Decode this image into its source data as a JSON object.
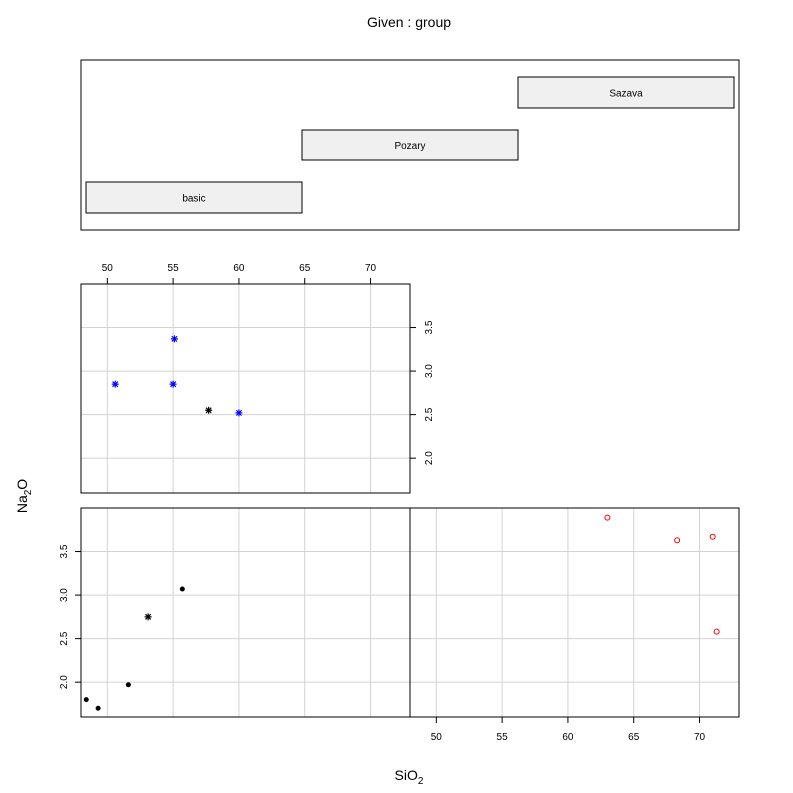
{
  "given_title": "Given : group",
  "ylabel": {
    "main": "Na",
    "sub": "2",
    "tail": "O"
  },
  "xlabel": {
    "main": "SiO",
    "sub": "2"
  },
  "colors": {
    "basic": "#000000",
    "Pozary": "#0000ff",
    "Sazava": "#ff0000",
    "grid": "#d3d3d3",
    "bar_fill": "#f0f0f0"
  },
  "chart_data": {
    "type": "scatter",
    "title": "",
    "xlabel": "SiO2",
    "ylabel": "Na2O",
    "given": "group",
    "xlim": [
      48,
      73
    ],
    "ylim": [
      1.6,
      4.0
    ],
    "xticks": [
      "50",
      "55",
      "60",
      "65",
      "70"
    ],
    "yticks": [
      "2.0",
      "2.5",
      "3.0",
      "3.5"
    ],
    "groups": [
      {
        "name": "basic",
        "marker": "solid-dot",
        "color": "#000000",
        "points": [
          {
            "x": 48.4,
            "y": 1.8
          },
          {
            "x": 49.3,
            "y": 1.7
          },
          {
            "x": 51.6,
            "y": 1.97
          },
          {
            "x": 55.7,
            "y": 3.07
          },
          {
            "x": 53.1,
            "y": 2.75,
            "marker": "star"
          }
        ]
      },
      {
        "name": "Pozary",
        "marker": "star",
        "color": "#0000ff",
        "points": [
          {
            "x": 50.6,
            "y": 2.85
          },
          {
            "x": 55.1,
            "y": 3.37
          },
          {
            "x": 55.0,
            "y": 2.85
          },
          {
            "x": 60.0,
            "y": 2.52
          },
          {
            "x": 57.7,
            "y": 2.55,
            "color": "#000000"
          }
        ]
      },
      {
        "name": "Sazava",
        "marker": "open-circle",
        "color": "#ff0000",
        "points": [
          {
            "x": 63.0,
            "y": 3.89
          },
          {
            "x": 68.3,
            "y": 3.63
          },
          {
            "x": 71.0,
            "y": 3.67
          },
          {
            "x": 71.3,
            "y": 2.58
          }
        ]
      }
    ]
  }
}
